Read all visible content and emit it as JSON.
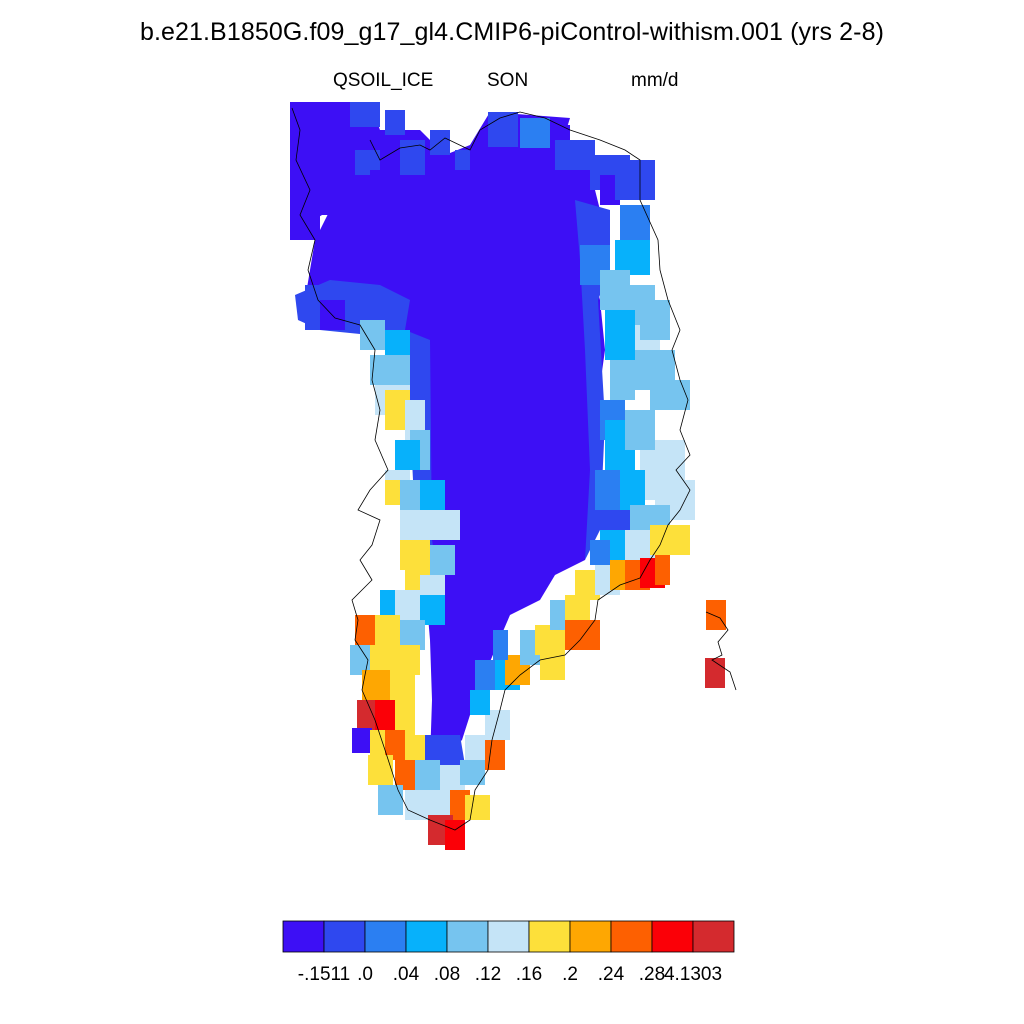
{
  "header": {
    "title": "b.e21.B1850G.f09_g17_gl4.CMIP6-piControl-withism.001 (yrs 2-8)",
    "variable": "QSOIL_ICE",
    "season": "SON",
    "units": "mm/d"
  },
  "colorbar": {
    "colors": [
      "#3d0ff5",
      "#2f48ef",
      "#2b7ff2",
      "#07b1fb",
      "#76c4ef",
      "#c5e4f7",
      "#fde03a",
      "#fea702",
      "#fd6001",
      "#fb0007",
      "#d42a2e"
    ],
    "labels": [
      "-.1511",
      ".0",
      ".04",
      ".08",
      ".12",
      ".16",
      ".2",
      ".24",
      ".28",
      "4.1303"
    ]
  },
  "map": {
    "region": "Greenland",
    "palette": [
      "#3d0ff5",
      "#2f48ef",
      "#2b7ff2",
      "#07b1fb",
      "#76c4ef",
      "#c5e4f7",
      "#fde03a",
      "#fea702",
      "#fd6001",
      "#fb0007",
      "#d42a2e"
    ]
  }
}
